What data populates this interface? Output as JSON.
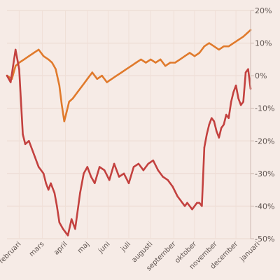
{
  "chart_data": {
    "type": "line",
    "title": "",
    "xlabel": "",
    "ylabel": "",
    "ylim": [
      -50,
      20
    ],
    "y_ticks": [
      {
        "value": 20,
        "label": "20%"
      },
      {
        "value": 10,
        "label": "10%"
      },
      {
        "value": 0,
        "label": "0%"
      },
      {
        "value": -10,
        "label": "-10%"
      },
      {
        "value": -20,
        "label": "-20%"
      },
      {
        "value": -30,
        "label": "-30%"
      },
      {
        "value": -40,
        "label": "-40%"
      },
      {
        "value": -50,
        "label": "-50%"
      }
    ],
    "x_ticks": [
      {
        "label": "februari",
        "value": 0.05
      },
      {
        "label": "mars",
        "value": 0.145
      },
      {
        "label": "april",
        "value": 0.24
      },
      {
        "label": "maj",
        "value": 0.33
      },
      {
        "label": "juni",
        "value": 0.415
      },
      {
        "label": "juli",
        "value": 0.5
      },
      {
        "label": "augusti",
        "value": 0.59
      },
      {
        "label": "september",
        "value": 0.685
      },
      {
        "label": "oktober",
        "value": 0.77
      },
      {
        "label": "november",
        "value": 0.855
      },
      {
        "label": "december",
        "value": 0.94
      },
      {
        "label": "januari",
        "value": 1.03
      }
    ],
    "grid": true,
    "series": [
      {
        "color": "#e07a2c",
        "x": [
          0.0,
          0.02,
          0.035,
          0.05,
          0.07,
          0.09,
          0.11,
          0.13,
          0.15,
          0.17,
          0.185,
          0.2,
          0.215,
          0.225,
          0.235,
          0.245,
          0.255,
          0.27,
          0.29,
          0.31,
          0.33,
          0.35,
          0.37,
          0.39,
          0.41,
          0.43,
          0.45,
          0.47,
          0.49,
          0.51,
          0.53,
          0.55,
          0.57,
          0.59,
          0.61,
          0.63,
          0.65,
          0.67,
          0.69,
          0.71,
          0.73,
          0.75,
          0.77,
          0.79,
          0.81,
          0.83,
          0.85,
          0.87,
          0.89,
          0.91,
          0.93,
          0.95,
          0.97,
          0.985,
          1.0
        ],
        "values": [
          0,
          -1,
          3,
          4,
          5,
          6,
          7,
          8,
          6,
          5,
          4,
          2,
          -3,
          -9,
          -14,
          -11,
          -8,
          -7,
          -5,
          -3,
          -1,
          1,
          -1,
          0,
          -2,
          -1,
          0,
          1,
          2,
          3,
          4,
          5,
          4,
          5,
          4,
          5,
          3,
          4,
          4,
          5,
          6,
          7,
          6,
          7,
          9,
          10,
          9,
          8,
          9,
          9,
          10,
          11,
          12,
          13,
          14
        ]
      },
      {
        "color": "#c3413f",
        "x": [
          0.0,
          0.015,
          0.025,
          0.035,
          0.05,
          0.065,
          0.075,
          0.09,
          0.11,
          0.13,
          0.15,
          0.16,
          0.17,
          0.18,
          0.195,
          0.205,
          0.215,
          0.23,
          0.24,
          0.25,
          0.265,
          0.28,
          0.3,
          0.315,
          0.33,
          0.345,
          0.36,
          0.38,
          0.4,
          0.42,
          0.44,
          0.46,
          0.48,
          0.5,
          0.52,
          0.54,
          0.56,
          0.58,
          0.6,
          0.62,
          0.64,
          0.66,
          0.68,
          0.7,
          0.71,
          0.72,
          0.73,
          0.74,
          0.75,
          0.76,
          0.77,
          0.78,
          0.79,
          0.8,
          0.81,
          0.82,
          0.83,
          0.84,
          0.85,
          0.86,
          0.87,
          0.88,
          0.89,
          0.9,
          0.91,
          0.92,
          0.93,
          0.94,
          0.95,
          0.96,
          0.97,
          0.98,
          0.99,
          1.0
        ],
        "values": [
          0,
          -2,
          3,
          8,
          2,
          -18,
          -21,
          -20,
          -24,
          -28,
          -30,
          -33,
          -35,
          -33,
          -36,
          -40,
          -45,
          -47,
          -48,
          -49,
          -44,
          -47,
          -36,
          -30,
          -28,
          -31,
          -33,
          -28,
          -29,
          -32,
          -27,
          -31,
          -30,
          -33,
          -28,
          -27,
          -29,
          -27,
          -26,
          -29,
          -31,
          -32,
          -34,
          -37,
          -38,
          -39,
          -40,
          -39,
          -40,
          -41,
          -40,
          -39,
          -39,
          -40,
          -22,
          -18,
          -15,
          -13,
          -14,
          -17,
          -19,
          -16,
          -15,
          -12,
          -13,
          -8,
          -5,
          -3,
          -7,
          -9,
          -8,
          1,
          2,
          -4
        ]
      }
    ]
  }
}
